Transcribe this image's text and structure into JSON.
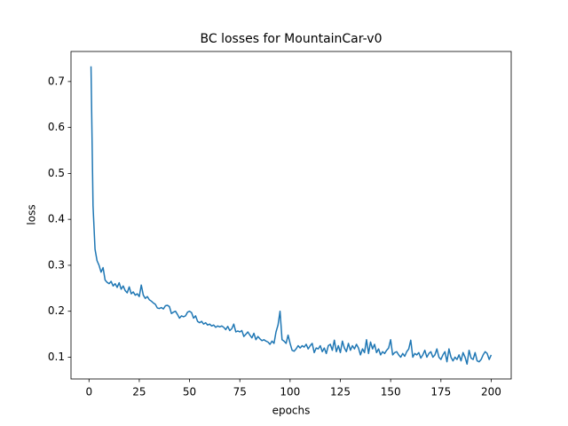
{
  "chart_data": {
    "type": "line",
    "title": "BC losses for MountainCar-v0",
    "x_label": "epochs",
    "y_label": "loss",
    "x": [
      1,
      2,
      3,
      4,
      5,
      6,
      7,
      8,
      9,
      10,
      11,
      12,
      13,
      14,
      15,
      16,
      17,
      18,
      19,
      20,
      21,
      22,
      23,
      24,
      25,
      26,
      27,
      28,
      29,
      30,
      31,
      32,
      33,
      34,
      35,
      36,
      37,
      38,
      39,
      40,
      41,
      42,
      43,
      44,
      45,
      46,
      47,
      48,
      49,
      50,
      51,
      52,
      53,
      54,
      55,
      56,
      57,
      58,
      59,
      60,
      61,
      62,
      63,
      64,
      65,
      66,
      67,
      68,
      69,
      70,
      71,
      72,
      73,
      74,
      75,
      76,
      77,
      78,
      79,
      80,
      81,
      82,
      83,
      84,
      85,
      86,
      87,
      88,
      89,
      90,
      91,
      92,
      93,
      94,
      95,
      96,
      97,
      98,
      99,
      100,
      101,
      102,
      103,
      104,
      105,
      106,
      107,
      108,
      109,
      110,
      111,
      112,
      113,
      114,
      115,
      116,
      117,
      118,
      119,
      120,
      121,
      122,
      123,
      124,
      125,
      126,
      127,
      128,
      129,
      130,
      131,
      132,
      133,
      134,
      135,
      136,
      137,
      138,
      139,
      140,
      141,
      142,
      143,
      144,
      145,
      146,
      147,
      148,
      149,
      150,
      151,
      152,
      153,
      154,
      155,
      156,
      157,
      158,
      159,
      160,
      161,
      162,
      163,
      164,
      165,
      166,
      167,
      168,
      169,
      170,
      171,
      172,
      173,
      174,
      175,
      176,
      177,
      178,
      179,
      180,
      181,
      182,
      183,
      184,
      185,
      186,
      187,
      188,
      189,
      190,
      191,
      192,
      193,
      194,
      195,
      196,
      197,
      198,
      199,
      200
    ],
    "series": [
      {
        "color": "#1f77b4",
        "values": [
          0.733,
          0.43,
          0.335,
          0.31,
          0.3,
          0.285,
          0.295,
          0.268,
          0.263,
          0.26,
          0.265,
          0.255,
          0.26,
          0.252,
          0.262,
          0.248,
          0.255,
          0.245,
          0.24,
          0.253,
          0.238,
          0.242,
          0.235,
          0.238,
          0.232,
          0.257,
          0.235,
          0.228,
          0.232,
          0.225,
          0.222,
          0.218,
          0.215,
          0.207,
          0.206,
          0.208,
          0.205,
          0.212,
          0.213,
          0.21,
          0.195,
          0.198,
          0.2,
          0.193,
          0.185,
          0.19,
          0.188,
          0.19,
          0.198,
          0.2,
          0.197,
          0.185,
          0.19,
          0.178,
          0.175,
          0.178,
          0.172,
          0.175,
          0.17,
          0.172,
          0.168,
          0.17,
          0.165,
          0.168,
          0.166,
          0.168,
          0.165,
          0.16,
          0.167,
          0.158,
          0.162,
          0.172,
          0.155,
          0.157,
          0.155,
          0.158,
          0.145,
          0.15,
          0.155,
          0.148,
          0.142,
          0.152,
          0.138,
          0.145,
          0.14,
          0.136,
          0.138,
          0.135,
          0.133,
          0.128,
          0.135,
          0.13,
          0.155,
          0.17,
          0.2,
          0.138,
          0.135,
          0.13,
          0.148,
          0.13,
          0.115,
          0.113,
          0.118,
          0.125,
          0.12,
          0.125,
          0.122,
          0.128,
          0.118,
          0.125,
          0.13,
          0.11,
          0.12,
          0.118,
          0.125,
          0.112,
          0.12,
          0.108,
          0.125,
          0.128,
          0.115,
          0.137,
          0.112,
          0.125,
          0.11,
          0.135,
          0.12,
          0.112,
          0.13,
          0.115,
          0.125,
          0.118,
          0.128,
          0.12,
          0.105,
          0.118,
          0.11,
          0.138,
          0.108,
          0.133,
          0.118,
          0.128,
          0.11,
          0.118,
          0.105,
          0.112,
          0.108,
          0.115,
          0.12,
          0.138,
          0.105,
          0.11,
          0.112,
          0.105,
          0.1,
          0.108,
          0.102,
          0.112,
          0.118,
          0.137,
          0.1,
          0.108,
          0.105,
          0.11,
          0.098,
          0.105,
          0.115,
          0.1,
          0.108,
          0.112,
          0.1,
          0.105,
          0.118,
          0.1,
          0.095,
          0.105,
          0.112,
          0.09,
          0.118,
          0.1,
          0.092,
          0.1,
          0.095,
          0.105,
          0.092,
          0.11,
          0.1,
          0.085,
          0.115,
          0.098,
          0.095,
          0.11,
          0.092,
          0.09,
          0.095,
          0.105,
          0.112,
          0.108,
          0.095,
          0.105
        ]
      }
    ],
    "xlim": [
      -8.95,
      209.95
    ],
    "xticks": [
      0,
      25,
      50,
      75,
      100,
      125,
      150,
      175,
      200
    ],
    "ylim": [
      0.0526,
      0.7654
    ],
    "yticks": [
      0.1,
      0.2,
      0.3,
      0.4,
      0.5,
      0.6,
      0.7
    ]
  }
}
